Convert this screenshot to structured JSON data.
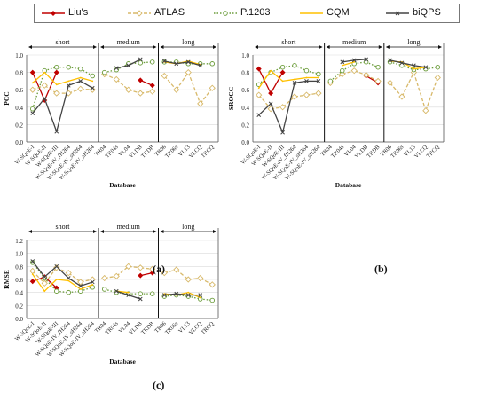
{
  "legend": [
    {
      "name": "Liu's",
      "color": "#c00000",
      "marker": "diamond",
      "dash": "solid"
    },
    {
      "name": "ATLAS",
      "color": "#d8b96a",
      "marker": "diamond-open",
      "dash": "dash"
    },
    {
      "name": "P.1203",
      "color": "#6b9c3a",
      "marker": "circle-open",
      "dash": "dot"
    },
    {
      "name": "CQM",
      "color": "#ffc000",
      "marker": "none",
      "dash": "solid"
    },
    {
      "name": "biQPS",
      "color": "#444444",
      "marker": "x",
      "dash": "solid"
    }
  ],
  "captions": {
    "a": "(a)",
    "b": "(b)",
    "c": "(c)"
  },
  "chart_data": [
    {
      "type": "line",
      "panel": "a",
      "ylabel": "PCC",
      "xlabel": "Database",
      "ylim": [
        0,
        1.0
      ],
      "yticks": [
        "0.0",
        "0.2",
        "0.4",
        "0.6",
        "0.8",
        "1.0"
      ],
      "categories": [
        "W-SQoE-I",
        "W-SQoE-II",
        "W-SQoE-III",
        "W-SQoE-IV_fH264",
        "W-SQoE-IV_sH264",
        "W-SQoE-IV_sH264",
        "TR04",
        "TR04s",
        "VL04",
        "VLDB",
        "TRDB",
        "TR06",
        "TR06s",
        "VL13",
        "VLCQ",
        "TRCQ"
      ],
      "groups": [
        {
          "label": "short",
          "start": 0,
          "end": 5
        },
        {
          "label": "medium",
          "start": 6,
          "end": 10
        },
        {
          "label": "long",
          "start": 11,
          "end": 15
        }
      ],
      "series": [
        {
          "name": "Liu's",
          "values": [
            0.8,
            0.48,
            0.8,
            null,
            null,
            null,
            null,
            null,
            null,
            0.71,
            0.65,
            null,
            null,
            null,
            null,
            null
          ]
        },
        {
          "name": "ATLAS",
          "values": [
            0.6,
            0.65,
            0.56,
            0.56,
            0.61,
            0.6,
            0.78,
            0.72,
            0.6,
            0.56,
            0.58,
            0.76,
            0.6,
            0.8,
            0.44,
            0.62
          ]
        },
        {
          "name": "P.1203",
          "values": [
            0.38,
            0.82,
            0.86,
            0.86,
            0.84,
            0.76,
            0.8,
            0.83,
            0.9,
            0.91,
            0.92,
            0.92,
            0.92,
            0.9,
            0.9,
            0.9
          ]
        },
        {
          "name": "CQM",
          "values": [
            0.68,
            0.8,
            0.66,
            0.7,
            0.74,
            0.7,
            null,
            null,
            null,
            null,
            null,
            0.92,
            0.9,
            0.93,
            0.89,
            null
          ]
        },
        {
          "name": "biQPS",
          "values": [
            0.33,
            0.5,
            0.12,
            0.65,
            0.7,
            0.62,
            null,
            0.85,
            0.88,
            0.95,
            null,
            0.93,
            0.9,
            0.92,
            0.88,
            null
          ]
        }
      ]
    },
    {
      "type": "line",
      "panel": "b",
      "ylabel": "SROCC",
      "xlabel": "Database",
      "ylim": [
        0,
        1.0
      ],
      "yticks": [
        "0.0",
        "0.2",
        "0.4",
        "0.6",
        "0.8",
        "1.0"
      ],
      "categories": [
        "W-SQoE-I",
        "W-SQoE-II",
        "W-SQoE-III",
        "W-SQoE-IV_fH264",
        "W-SQoE-IV_sH264",
        "W-SQoE-IV_sH264",
        "TR04",
        "TR04s",
        "VL04",
        "VLDB",
        "TRDB",
        "TR06",
        "TR06s",
        "VL13",
        "VLCQ",
        "TRCQ"
      ],
      "groups": [
        {
          "label": "short",
          "start": 0,
          "end": 5
        },
        {
          "label": "medium",
          "start": 6,
          "end": 10
        },
        {
          "label": "long",
          "start": 11,
          "end": 15
        }
      ],
      "series": [
        {
          "name": "Liu's",
          "values": [
            0.84,
            0.56,
            0.8,
            null,
            null,
            null,
            null,
            null,
            null,
            0.76,
            0.68,
            null,
            null,
            null,
            null,
            null
          ]
        },
        {
          "name": "ATLAS",
          "values": [
            0.54,
            0.38,
            0.4,
            0.52,
            0.54,
            0.56,
            0.68,
            0.78,
            0.82,
            0.77,
            0.7,
            0.68,
            0.52,
            0.8,
            0.36,
            0.74
          ]
        },
        {
          "name": "P.1203",
          "values": [
            0.66,
            0.8,
            0.86,
            0.88,
            0.82,
            0.78,
            0.7,
            0.82,
            0.9,
            0.92,
            0.86,
            0.92,
            0.88,
            0.83,
            0.84,
            0.86
          ]
        },
        {
          "name": "CQM",
          "values": [
            0.62,
            0.82,
            0.7,
            0.72,
            0.74,
            0.74,
            null,
            0.88,
            0.92,
            null,
            null,
            0.93,
            0.92,
            0.84,
            0.86,
            null
          ]
        },
        {
          "name": "biQPS",
          "values": [
            0.31,
            0.44,
            0.11,
            0.68,
            0.7,
            0.7,
            null,
            0.92,
            0.94,
            0.95,
            null,
            0.94,
            0.91,
            0.88,
            0.86,
            null
          ]
        }
      ]
    },
    {
      "type": "line",
      "panel": "c",
      "ylabel": "RMSE",
      "xlabel": "Database",
      "ylim": [
        0,
        1.2
      ],
      "yticks": [
        "0.0",
        "0.2",
        "0.4",
        "0.6",
        "0.8",
        "1.0",
        "1.2"
      ],
      "categories": [
        "W-SQoE-I",
        "W-SQoE-II",
        "W-SQoE-III",
        "W-SQoE-IV_fH264",
        "W-SQoE-IV_sH264",
        "W-SQoE-IV_sH264",
        "TR04",
        "TR04s",
        "VL04",
        "VLDB",
        "TRDB",
        "TR06",
        "TR06s",
        "VL13",
        "VLCQ",
        "TRCQ"
      ],
      "groups": [
        {
          "label": "short",
          "start": 0,
          "end": 5
        },
        {
          "label": "medium",
          "start": 6,
          "end": 10
        },
        {
          "label": "long",
          "start": 11,
          "end": 15
        }
      ],
      "series": [
        {
          "name": "Liu's",
          "values": [
            0.57,
            0.64,
            0.47,
            null,
            null,
            null,
            null,
            null,
            null,
            0.66,
            0.7,
            null,
            null,
            null,
            null,
            null
          ]
        },
        {
          "name": "ATLAS",
          "values": [
            0.73,
            0.54,
            0.78,
            0.7,
            0.56,
            0.6,
            0.62,
            0.65,
            0.8,
            0.78,
            0.76,
            0.7,
            0.75,
            0.6,
            0.62,
            0.52
          ]
        },
        {
          "name": "P.1203",
          "values": [
            0.86,
            0.62,
            0.42,
            0.4,
            0.42,
            0.48,
            0.45,
            0.4,
            0.38,
            0.38,
            0.38,
            0.34,
            0.36,
            0.34,
            0.3,
            0.28
          ]
        },
        {
          "name": "CQM",
          "values": [
            0.68,
            0.42,
            0.6,
            0.58,
            0.45,
            0.52,
            null,
            0.42,
            0.4,
            null,
            null,
            0.38,
            0.36,
            0.4,
            0.32,
            null
          ]
        },
        {
          "name": "biQPS",
          "values": [
            0.88,
            0.64,
            0.8,
            0.62,
            0.5,
            0.56,
            null,
            0.42,
            0.36,
            0.3,
            null,
            0.36,
            0.38,
            0.36,
            0.36,
            null
          ]
        }
      ]
    }
  ]
}
